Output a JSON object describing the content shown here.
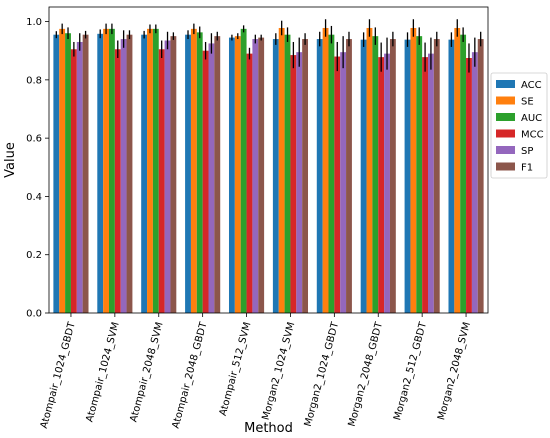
{
  "chart_data": {
    "type": "bar",
    "title": "",
    "xlabel": "Method",
    "ylabel": "Value",
    "ylim": [
      0,
      1.05
    ],
    "yticks": [
      0.0,
      0.2,
      0.4,
      0.6,
      0.8,
      1.0
    ],
    "ytick_labels": [
      "0.0",
      "0.2",
      "0.4",
      "0.6",
      "0.8",
      "1.0"
    ],
    "grid": false,
    "legend_position": "right",
    "categories": [
      "Atompair_1024_GBDT",
      "Atompair_1024_SVM",
      "Atompair_2048_SVM",
      "Atompair_2048_GBDT",
      "Atompair_512_SVM",
      "Morgan2_1024_SVM",
      "Morgan2_1024_GBDT",
      "Morgan2_2048_GBDT",
      "Morgan2_512_GBDT",
      "Morgan2_2048_SVM"
    ],
    "series": [
      {
        "name": "ACC",
        "color": "#1f77b4",
        "values": [
          0.955,
          0.958,
          0.955,
          0.955,
          0.945,
          0.94,
          0.94,
          0.938,
          0.938,
          0.938
        ],
        "errors": [
          0.012,
          0.015,
          0.013,
          0.015,
          0.01,
          0.02,
          0.025,
          0.025,
          0.025,
          0.025
        ]
      },
      {
        "name": "SE",
        "color": "#ff7f0e",
        "values": [
          0.975,
          0.975,
          0.975,
          0.975,
          0.95,
          0.978,
          0.978,
          0.978,
          0.978,
          0.978
        ],
        "errors": [
          0.018,
          0.018,
          0.015,
          0.018,
          0.01,
          0.025,
          0.03,
          0.03,
          0.03,
          0.03
        ]
      },
      {
        "name": "AUC",
        "color": "#2ca02c",
        "values": [
          0.96,
          0.975,
          0.975,
          0.963,
          0.975,
          0.955,
          0.955,
          0.95,
          0.95,
          0.955
        ],
        "errors": [
          0.02,
          0.018,
          0.015,
          0.02,
          0.012,
          0.025,
          0.03,
          0.03,
          0.03,
          0.025
        ]
      },
      {
        "name": "MCC",
        "color": "#d62728",
        "values": [
          0.905,
          0.905,
          0.905,
          0.9,
          0.89,
          0.885,
          0.88,
          0.878,
          0.878,
          0.875
        ],
        "errors": [
          0.025,
          0.03,
          0.03,
          0.03,
          0.02,
          0.045,
          0.05,
          0.05,
          0.05,
          0.05
        ]
      },
      {
        "name": "SP",
        "color": "#9467bd",
        "values": [
          0.93,
          0.94,
          0.935,
          0.925,
          0.94,
          0.895,
          0.895,
          0.89,
          0.89,
          0.895
        ],
        "errors": [
          0.03,
          0.03,
          0.03,
          0.035,
          0.015,
          0.05,
          0.055,
          0.055,
          0.055,
          0.05
        ]
      },
      {
        "name": "F1",
        "color": "#8c564b",
        "values": [
          0.955,
          0.955,
          0.95,
          0.95,
          0.945,
          0.94,
          0.94,
          0.94,
          0.94,
          0.94
        ],
        "errors": [
          0.013,
          0.015,
          0.013,
          0.015,
          0.01,
          0.02,
          0.025,
          0.025,
          0.025,
          0.025
        ]
      }
    ]
  }
}
